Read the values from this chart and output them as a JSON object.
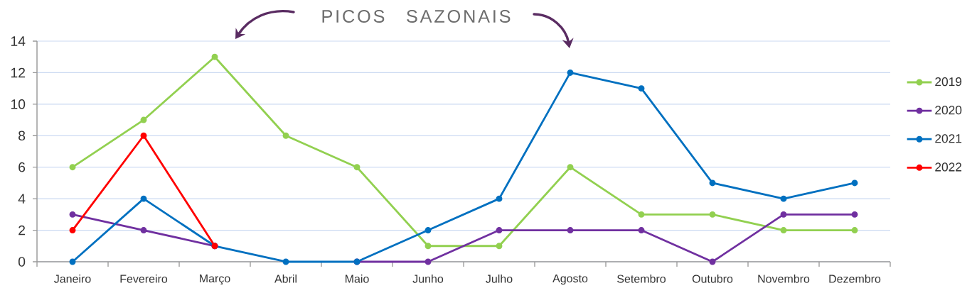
{
  "chart_data": {
    "type": "line",
    "title": "PICOS SAZONAIS",
    "categories": [
      "Janeiro",
      "Fevereiro",
      "Março",
      "Abril",
      "Maio",
      "Junho",
      "Julho",
      "Agosto",
      "Setembro",
      "Outubro",
      "Novembro",
      "Dezembro"
    ],
    "series": [
      {
        "name": "2019",
        "color": "#92d050",
        "values": [
          6,
          9,
          13,
          8,
          6,
          1,
          1,
          6,
          3,
          3,
          2,
          2
        ]
      },
      {
        "name": "2020",
        "color": "#7030a0",
        "values": [
          3,
          2,
          1,
          null,
          0,
          0,
          2,
          2,
          2,
          0,
          3,
          3
        ]
      },
      {
        "name": "2021",
        "color": "#0070c0",
        "values": [
          0,
          4,
          1,
          0,
          0,
          2,
          4,
          12,
          11,
          5,
          4,
          5
        ]
      },
      {
        "name": "2022",
        "color": "#ff0000",
        "values": [
          2,
          8,
          1,
          null,
          null,
          null,
          null,
          null,
          null,
          null,
          null,
          null
        ]
      }
    ],
    "ylim": [
      0,
      14
    ],
    "yticks": [
      0,
      2,
      4,
      6,
      8,
      10,
      12,
      14
    ],
    "grid": "y",
    "legend": "right",
    "marker": "circle",
    "line_style": "solid"
  }
}
